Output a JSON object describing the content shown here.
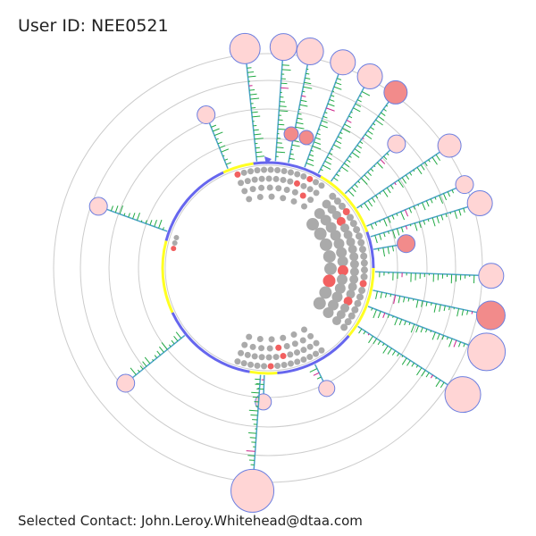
{
  "header": {
    "label": "User ID: ",
    "user_id": "NEE0521"
  },
  "footer": {
    "label": "Selected Contact: ",
    "contact": "John.Leroy.Whitehead@dtaa.com"
  },
  "colors": {
    "ring": "#cccccc",
    "spoke": "#4aa3c8",
    "tick": "#22aa44",
    "tick_alt": "#cc2288",
    "node_fill": "#ffd5d5",
    "node_fill_dark": "#f28b8b",
    "node_stroke": "#6c7fe0",
    "dot_gray": "#aaaaaa",
    "dot_red": "#f26060",
    "arc_blue": "#6666ee",
    "arc_yellow": "#ffff22"
  },
  "icons": {
    "pointer": "triangle-pointer-icon"
  }
}
